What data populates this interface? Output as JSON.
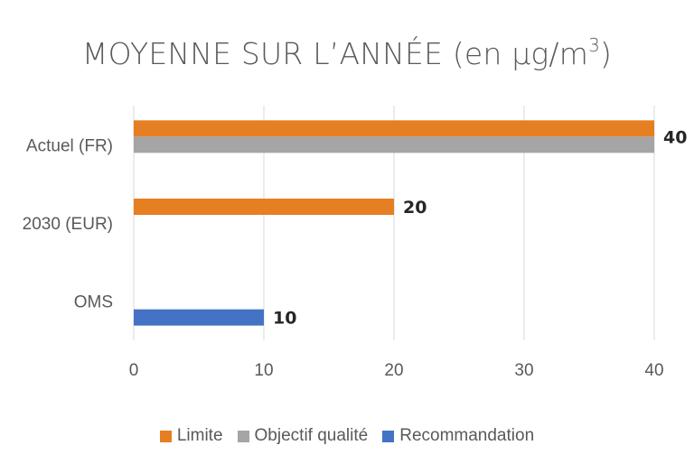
{
  "chart_data": {
    "type": "bar",
    "orientation": "horizontal",
    "title": "MOYENNE SUR L’ANNÉE (en µg/m",
    "title_superscript": "3",
    "title_suffix": ")",
    "categories": [
      "Actuel (FR)",
      "2030 (EUR)",
      "OMS"
    ],
    "series": [
      {
        "name": "Limite",
        "color": "#E67E22",
        "values": [
          40,
          20,
          null
        ]
      },
      {
        "name": "Objectif qualité",
        "color": "#A5A5A5",
        "values": [
          40,
          null,
          null
        ]
      },
      {
        "name": "Recommandation",
        "color": "#4472C4",
        "values": [
          null,
          null,
          10
        ]
      }
    ],
    "data_labels": [
      "40",
      "20",
      "10"
    ],
    "xlim": [
      0,
      40
    ],
    "xticks": [
      0,
      10,
      20,
      30,
      40
    ],
    "grid": true,
    "legend_position": "bottom"
  }
}
